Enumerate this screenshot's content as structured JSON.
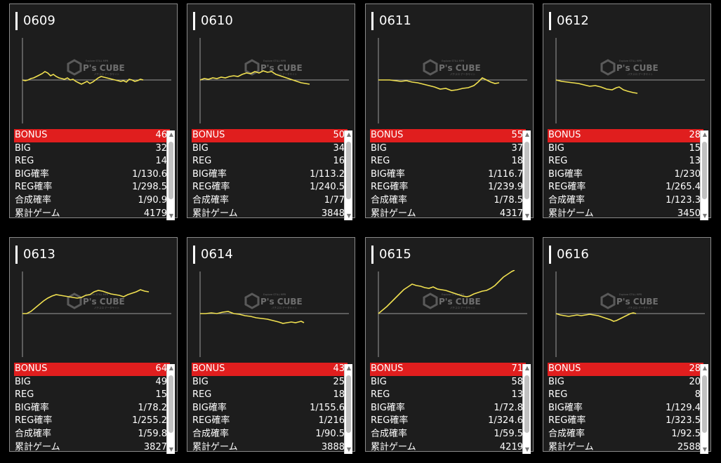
{
  "watermark": {
    "line1": "Explore STILL MPR",
    "line2": "P's CUBE",
    "line3": "パチスロ データサイト"
  },
  "accent_color": "#e01e1e",
  "line_color": "#f0e050",
  "cards": [
    {
      "id": "0609",
      "bonus": "46",
      "big": "32",
      "reg": "14",
      "big_rate": "1/130.6",
      "reg_rate": "1/298.5",
      "total_rate": "1/90.9",
      "games": "4179",
      "graph_points": [
        [
          0,
          0
        ],
        [
          4,
          1
        ],
        [
          8,
          0
        ],
        [
          12,
          -2
        ],
        [
          16,
          -3
        ],
        [
          20,
          -5
        ],
        [
          24,
          -7
        ],
        [
          28,
          -9
        ],
        [
          32,
          -12
        ],
        [
          36,
          -10
        ],
        [
          40,
          -6
        ],
        [
          44,
          -8
        ],
        [
          48,
          -5
        ],
        [
          52,
          -3
        ],
        [
          56,
          -2
        ],
        [
          60,
          -1
        ],
        [
          64,
          -3
        ],
        [
          68,
          0
        ],
        [
          72,
          -1
        ],
        [
          76,
          2
        ],
        [
          80,
          4
        ],
        [
          84,
          6
        ],
        [
          88,
          4
        ],
        [
          92,
          2
        ],
        [
          96,
          5
        ],
        [
          100,
          3
        ],
        [
          104,
          0
        ],
        [
          108,
          -3
        ],
        [
          112,
          -5
        ],
        [
          116,
          -4
        ],
        [
          120,
          -3
        ],
        [
          124,
          -2
        ],
        [
          128,
          -1
        ],
        [
          132,
          0
        ],
        [
          136,
          1
        ],
        [
          140,
          2
        ],
        [
          144,
          1
        ],
        [
          148,
          3
        ],
        [
          152,
          -1
        ],
        [
          156,
          0
        ],
        [
          160,
          2
        ],
        [
          164,
          1
        ],
        [
          168,
          -1
        ],
        [
          172,
          0
        ]
      ]
    },
    {
      "id": "0610",
      "bonus": "50",
      "big": "34",
      "reg": "16",
      "big_rate": "1/113.2",
      "reg_rate": "1/240.5",
      "total_rate": "1/77",
      "games": "3848",
      "graph_points": [
        [
          0,
          0
        ],
        [
          6,
          -2
        ],
        [
          12,
          -1
        ],
        [
          18,
          -3
        ],
        [
          24,
          -2
        ],
        [
          30,
          -4
        ],
        [
          36,
          -3
        ],
        [
          42,
          -5
        ],
        [
          48,
          -6
        ],
        [
          54,
          -5
        ],
        [
          60,
          -8
        ],
        [
          66,
          -10
        ],
        [
          72,
          -9
        ],
        [
          78,
          -12
        ],
        [
          84,
          -10
        ],
        [
          90,
          -13
        ],
        [
          96,
          -11
        ],
        [
          102,
          -12
        ],
        [
          108,
          -8
        ],
        [
          114,
          -6
        ],
        [
          120,
          -4
        ],
        [
          126,
          -2
        ],
        [
          132,
          0
        ],
        [
          138,
          2
        ],
        [
          144,
          4
        ],
        [
          150,
          5
        ],
        [
          156,
          6
        ]
      ]
    },
    {
      "id": "0611",
      "bonus": "55",
      "big": "37",
      "reg": "18",
      "big_rate": "1/116.7",
      "reg_rate": "1/239.9",
      "total_rate": "1/78.5",
      "games": "4317",
      "graph_points": [
        [
          0,
          0
        ],
        [
          8,
          0
        ],
        [
          16,
          0
        ],
        [
          24,
          1
        ],
        [
          32,
          2
        ],
        [
          40,
          1
        ],
        [
          48,
          3
        ],
        [
          56,
          4
        ],
        [
          64,
          6
        ],
        [
          72,
          8
        ],
        [
          80,
          10
        ],
        [
          88,
          13
        ],
        [
          96,
          12
        ],
        [
          104,
          15
        ],
        [
          112,
          14
        ],
        [
          120,
          12
        ],
        [
          128,
          11
        ],
        [
          136,
          8
        ],
        [
          142,
          3
        ],
        [
          148,
          -3
        ],
        [
          154,
          0
        ],
        [
          160,
          3
        ],
        [
          166,
          5
        ],
        [
          172,
          4
        ]
      ]
    },
    {
      "id": "0612",
      "bonus": "28",
      "big": "15",
      "reg": "13",
      "big_rate": "1/230",
      "reg_rate": "1/265.4",
      "total_rate": "1/123.3",
      "games": "3450",
      "graph_points": [
        [
          0,
          0
        ],
        [
          8,
          2
        ],
        [
          16,
          3
        ],
        [
          24,
          4
        ],
        [
          32,
          5
        ],
        [
          40,
          7
        ],
        [
          48,
          9
        ],
        [
          56,
          8
        ],
        [
          64,
          10
        ],
        [
          72,
          13
        ],
        [
          80,
          14
        ],
        [
          86,
          11
        ],
        [
          90,
          10
        ],
        [
          96,
          14
        ],
        [
          102,
          16
        ],
        [
          110,
          18
        ],
        [
          116,
          19
        ]
      ]
    },
    {
      "id": "0613",
      "bonus": "64",
      "big": "49",
      "reg": "15",
      "big_rate": "1/78.2",
      "reg_rate": "1/255.2",
      "total_rate": "1/59.8",
      "games": "3827",
      "graph_points": [
        [
          0,
          0
        ],
        [
          6,
          0
        ],
        [
          12,
          -3
        ],
        [
          18,
          -8
        ],
        [
          24,
          -13
        ],
        [
          30,
          -18
        ],
        [
          36,
          -22
        ],
        [
          42,
          -25
        ],
        [
          48,
          -27
        ],
        [
          54,
          -26
        ],
        [
          60,
          -25
        ],
        [
          66,
          -24
        ],
        [
          72,
          -23
        ],
        [
          78,
          -22
        ],
        [
          84,
          -23
        ],
        [
          90,
          -26
        ],
        [
          96,
          -27
        ],
        [
          102,
          -31
        ],
        [
          108,
          -33
        ],
        [
          114,
          -32
        ],
        [
          120,
          -30
        ],
        [
          126,
          -28
        ],
        [
          132,
          -27
        ],
        [
          138,
          -26
        ],
        [
          144,
          -24
        ],
        [
          150,
          -27
        ],
        [
          156,
          -29
        ],
        [
          162,
          -31
        ],
        [
          168,
          -34
        ],
        [
          174,
          -32
        ],
        [
          180,
          -31
        ]
      ]
    },
    {
      "id": "0614",
      "bonus": "43",
      "big": "25",
      "reg": "18",
      "big_rate": "1/155.6",
      "reg_rate": "1/216",
      "total_rate": "1/90.5",
      "games": "3888",
      "graph_points": [
        [
          0,
          0
        ],
        [
          8,
          0
        ],
        [
          16,
          -1
        ],
        [
          24,
          0
        ],
        [
          32,
          -2
        ],
        [
          40,
          -3
        ],
        [
          48,
          0
        ],
        [
          56,
          1
        ],
        [
          64,
          3
        ],
        [
          72,
          4
        ],
        [
          80,
          6
        ],
        [
          88,
          7
        ],
        [
          96,
          8
        ],
        [
          104,
          10
        ],
        [
          112,
          12
        ],
        [
          118,
          14
        ],
        [
          124,
          13
        ],
        [
          130,
          12
        ],
        [
          136,
          13
        ],
        [
          140,
          12
        ],
        [
          144,
          11
        ],
        [
          148,
          13
        ]
      ]
    },
    {
      "id": "0615",
      "bonus": "71",
      "big": "58",
      "reg": "13",
      "big_rate": "1/72.8",
      "reg_rate": "1/324.6",
      "total_rate": "1/59.5",
      "games": "4219",
      "graph_points": [
        [
          0,
          0
        ],
        [
          6,
          -5
        ],
        [
          12,
          -10
        ],
        [
          18,
          -16
        ],
        [
          24,
          -22
        ],
        [
          30,
          -28
        ],
        [
          36,
          -34
        ],
        [
          42,
          -38
        ],
        [
          48,
          -42
        ],
        [
          54,
          -40
        ],
        [
          60,
          -39
        ],
        [
          66,
          -37
        ],
        [
          72,
          -36
        ],
        [
          78,
          -38
        ],
        [
          84,
          -35
        ],
        [
          90,
          -34
        ],
        [
          96,
          -33
        ],
        [
          102,
          -31
        ],
        [
          108,
          -29
        ],
        [
          114,
          -27
        ],
        [
          120,
          -25
        ],
        [
          126,
          -24
        ],
        [
          130,
          -25
        ],
        [
          136,
          -28
        ],
        [
          142,
          -30
        ],
        [
          148,
          -32
        ],
        [
          154,
          -33
        ],
        [
          160,
          -36
        ],
        [
          166,
          -40
        ],
        [
          172,
          -46
        ],
        [
          178,
          -52
        ],
        [
          184,
          -56
        ],
        [
          190,
          -60
        ],
        [
          194,
          -62
        ]
      ]
    },
    {
      "id": "0616",
      "bonus": "28",
      "big": "20",
      "reg": "8",
      "big_rate": "1/129.4",
      "reg_rate": "1/323.5",
      "total_rate": "1/92.5",
      "games": "2588",
      "graph_points": [
        [
          0,
          0
        ],
        [
          6,
          2
        ],
        [
          12,
          3
        ],
        [
          18,
          4
        ],
        [
          24,
          3
        ],
        [
          30,
          2
        ],
        [
          36,
          3
        ],
        [
          42,
          2
        ],
        [
          48,
          1
        ],
        [
          54,
          2
        ],
        [
          60,
          3
        ],
        [
          66,
          5
        ],
        [
          72,
          7
        ],
        [
          78,
          9
        ],
        [
          82,
          11
        ],
        [
          86,
          10
        ],
        [
          90,
          8
        ],
        [
          94,
          6
        ],
        [
          98,
          4
        ],
        [
          102,
          2
        ],
        [
          106,
          0
        ],
        [
          110,
          -1
        ],
        [
          114,
          0
        ]
      ]
    }
  ],
  "labels": {
    "bonus": "BONUS",
    "big": "BIG",
    "reg": "REG",
    "big_rate": "BIG確率",
    "reg_rate": "REG確率",
    "total_rate": "合成確率",
    "games": "累計ゲーム"
  },
  "scroll_up": "▲",
  "scroll_down": "▼"
}
